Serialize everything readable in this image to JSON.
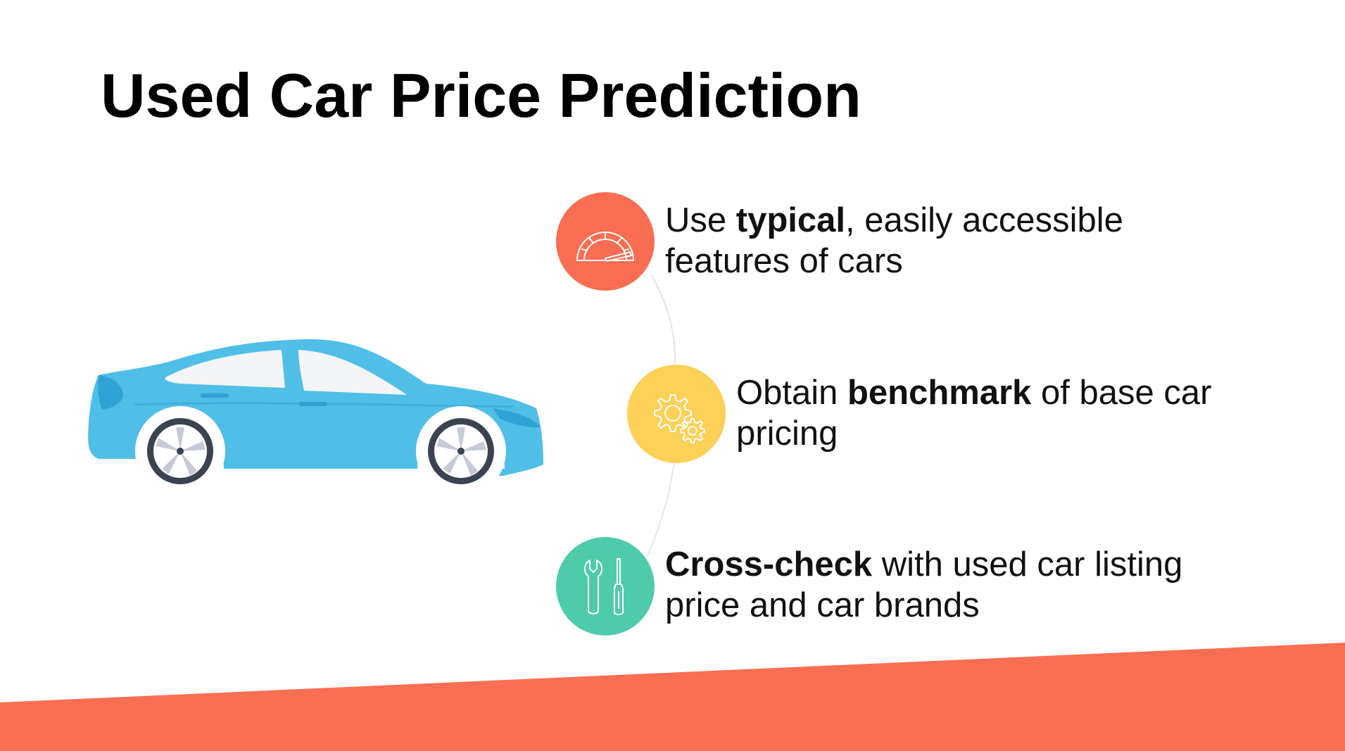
{
  "slide": {
    "title": "Used Car Price Prediction"
  },
  "colors": {
    "accent_orange": "#F96E53",
    "accent_yellow": "#FDD057",
    "accent_green": "#4ECBAB",
    "car_blue": "#4FBFE8",
    "car_blue_dark": "#2FA3D4",
    "tire": "#3B4350",
    "band": "#FA6E53"
  },
  "items": [
    {
      "icon": "speedometer-icon",
      "color": "#F96E53",
      "line1_pre": "Use ",
      "line1_bold": "typical",
      "line1_post": ", easily accessible",
      "line2": "features of cars"
    },
    {
      "icon": "gears-icon",
      "color": "#FDD057",
      "line1_pre": "Obtain ",
      "line1_bold": "benchmark",
      "line1_post": " of base car",
      "line2": "pricing"
    },
    {
      "icon": "tools-icon",
      "color": "#4ECBAB",
      "line1_pre": "",
      "line1_bold": "Cross-check",
      "line1_post": " with used car listing",
      "line2": "price and car brands"
    }
  ]
}
